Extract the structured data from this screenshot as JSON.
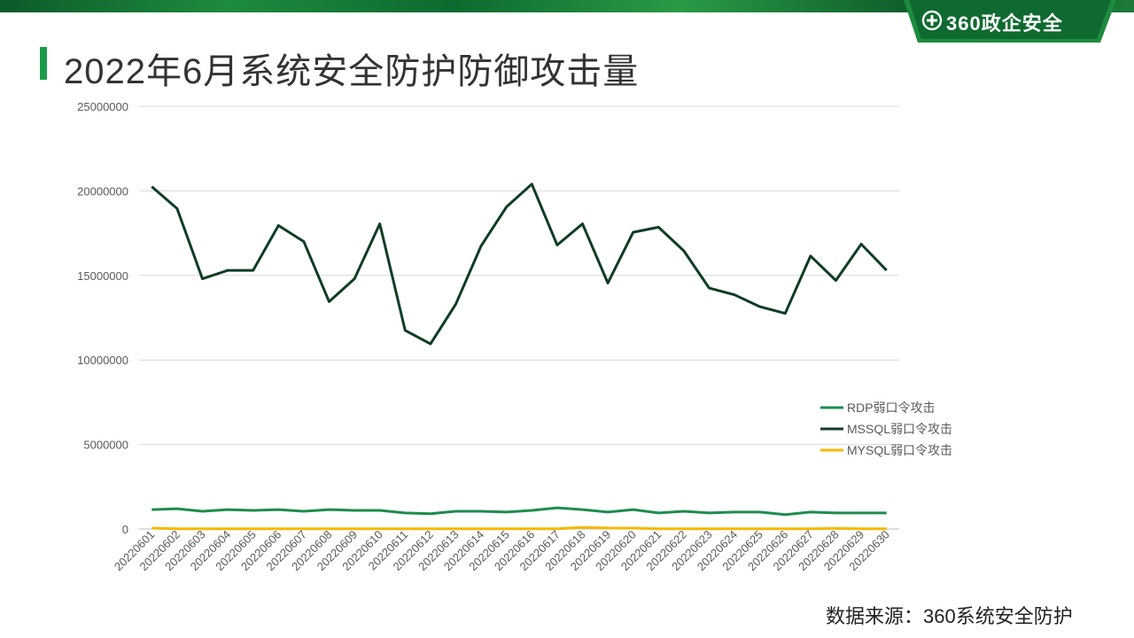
{
  "header": {
    "brand": "360政企安全",
    "title": "2022年6月系统安全防护防御攻击量"
  },
  "footer": {
    "source": "数据来源：360系统安全防护"
  },
  "colors": {
    "rdp": "#1e8c4e",
    "mssql": "#0f3d24",
    "mysql": "#f5b800",
    "accent": "#1a9c4a"
  },
  "icons": {
    "logo": "plus-circle-icon"
  },
  "chart_data": {
    "type": "line",
    "title": "",
    "xlabel": "",
    "ylabel": "",
    "ylim": [
      0,
      25000000
    ],
    "yticks": [
      "0",
      "5000000",
      "10000000",
      "15000000",
      "20000000",
      "25000000"
    ],
    "grid": true,
    "legend": "right",
    "categories": [
      "20220601",
      "20220602",
      "20220603",
      "20220604",
      "20220605",
      "20220606",
      "20220607",
      "20220608",
      "20220609",
      "20220610",
      "20220611",
      "20220612",
      "20220613",
      "20220614",
      "20220615",
      "20220616",
      "20220617",
      "20220618",
      "20220619",
      "20220620",
      "20220621",
      "20220622",
      "20220623",
      "20220624",
      "20220625",
      "20220626",
      "20220627",
      "20220628",
      "20220629",
      "20220630"
    ],
    "series": [
      {
        "name": "RDP弱口令攻击",
        "color": "#1e8c4e",
        "values": [
          1150000,
          1200000,
          1050000,
          1150000,
          1100000,
          1150000,
          1050000,
          1150000,
          1100000,
          1100000,
          950000,
          900000,
          1050000,
          1050000,
          1000000,
          1100000,
          1250000,
          1150000,
          1000000,
          1150000,
          950000,
          1050000,
          950000,
          1000000,
          1000000,
          850000,
          1000000,
          950000,
          950000,
          950000
        ]
      },
      {
        "name": "MSSQL弱口令攻击",
        "color": "#0f3d24",
        "values": [
          20250000,
          18950000,
          14800000,
          15300000,
          15300000,
          17950000,
          17000000,
          13450000,
          14800000,
          18050000,
          11750000,
          10950000,
          13300000,
          16750000,
          19050000,
          20400000,
          16800000,
          18050000,
          14550000,
          17550000,
          17850000,
          16450000,
          14250000,
          13850000,
          13150000,
          12750000,
          16150000,
          14700000,
          16850000,
          15300000
        ]
      },
      {
        "name": "MYSQL弱口令攻击",
        "color": "#f5b800",
        "values": [
          50000,
          10000,
          10000,
          10000,
          10000,
          10000,
          10000,
          10000,
          10000,
          10000,
          10000,
          10000,
          10000,
          10000,
          10000,
          10000,
          10000,
          100000,
          60000,
          50000,
          10000,
          10000,
          10000,
          10000,
          10000,
          10000,
          10000,
          40000,
          10000,
          10000
        ]
      }
    ]
  }
}
